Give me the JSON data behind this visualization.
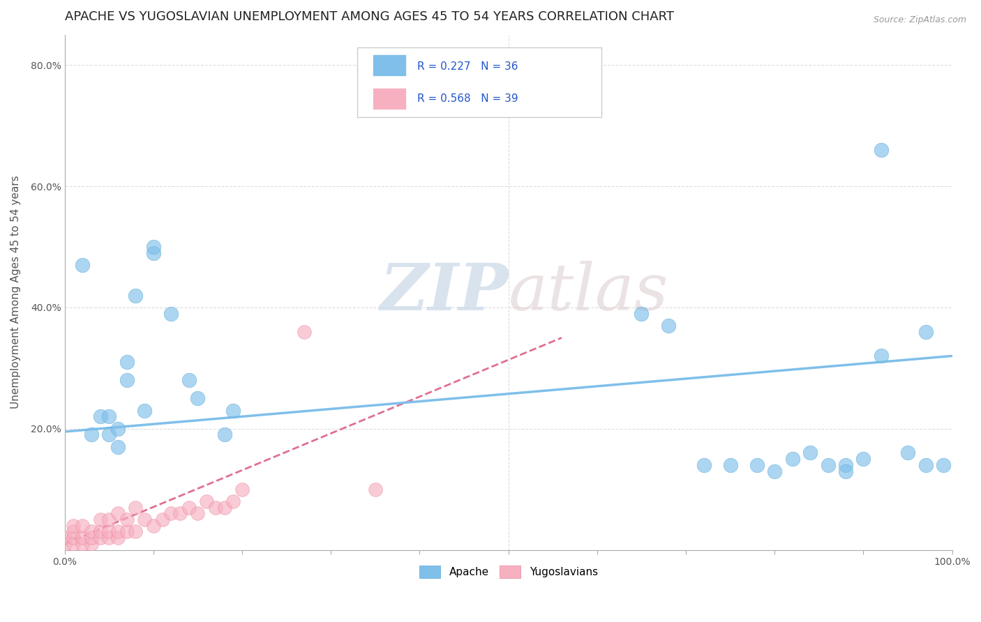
{
  "title": "APACHE VS YUGOSLAVIAN UNEMPLOYMENT AMONG AGES 45 TO 54 YEARS CORRELATION CHART",
  "source_text": "Source: ZipAtlas.com",
  "ylabel": "Unemployment Among Ages 45 to 54 years",
  "xlim": [
    0.0,
    1.0
  ],
  "ylim": [
    0.0,
    0.85
  ],
  "xticks": [
    0.0,
    0.1,
    0.2,
    0.3,
    0.4,
    0.5,
    0.6,
    0.7,
    0.8,
    0.9,
    1.0
  ],
  "xticklabels": [
    "0.0%",
    "",
    "",
    "",
    "",
    "",
    "",
    "",
    "",
    "",
    "100.0%"
  ],
  "yticks": [
    0.0,
    0.2,
    0.4,
    0.6,
    0.8
  ],
  "yticklabels": [
    "",
    "20.0%",
    "40.0%",
    "60.0%",
    "80.0%"
  ],
  "apache_color": "#7fbfea",
  "apache_edge_color": "#5aaad8",
  "yugoslavian_color": "#f7b0c0",
  "yugoslavian_edge_color": "#e8809a",
  "apache_R": 0.227,
  "apache_N": 36,
  "yugoslavian_R": 0.568,
  "yugoslavian_N": 39,
  "watermark_zip": "ZIP",
  "watermark_atlas": "atlas",
  "background_color": "#ffffff",
  "grid_color": "#dddddd",
  "apache_scatter_x": [
    0.02,
    0.03,
    0.04,
    0.05,
    0.05,
    0.06,
    0.06,
    0.07,
    0.07,
    0.08,
    0.09,
    0.1,
    0.1,
    0.12,
    0.14,
    0.15,
    0.18,
    0.19,
    0.65,
    0.68,
    0.72,
    0.75,
    0.78,
    0.8,
    0.82,
    0.84,
    0.86,
    0.88,
    0.88,
    0.9,
    0.92,
    0.92,
    0.95,
    0.97,
    0.97,
    0.99
  ],
  "apache_scatter_y": [
    0.47,
    0.19,
    0.22,
    0.19,
    0.22,
    0.17,
    0.2,
    0.28,
    0.31,
    0.42,
    0.23,
    0.49,
    0.5,
    0.39,
    0.28,
    0.25,
    0.19,
    0.23,
    0.39,
    0.37,
    0.14,
    0.14,
    0.14,
    0.13,
    0.15,
    0.16,
    0.14,
    0.14,
    0.13,
    0.15,
    0.32,
    0.66,
    0.16,
    0.36,
    0.14,
    0.14
  ],
  "yugo_scatter_x": [
    0.0,
    0.0,
    0.01,
    0.01,
    0.01,
    0.01,
    0.02,
    0.02,
    0.02,
    0.03,
    0.03,
    0.03,
    0.04,
    0.04,
    0.04,
    0.05,
    0.05,
    0.05,
    0.06,
    0.06,
    0.06,
    0.07,
    0.07,
    0.08,
    0.08,
    0.09,
    0.1,
    0.11,
    0.12,
    0.13,
    0.14,
    0.15,
    0.16,
    0.17,
    0.18,
    0.19,
    0.2,
    0.27,
    0.35
  ],
  "yugo_scatter_y": [
    0.01,
    0.02,
    0.01,
    0.02,
    0.03,
    0.04,
    0.01,
    0.02,
    0.04,
    0.01,
    0.02,
    0.03,
    0.02,
    0.03,
    0.05,
    0.02,
    0.03,
    0.05,
    0.02,
    0.03,
    0.06,
    0.03,
    0.05,
    0.03,
    0.07,
    0.05,
    0.04,
    0.05,
    0.06,
    0.06,
    0.07,
    0.06,
    0.08,
    0.07,
    0.07,
    0.08,
    0.1,
    0.36,
    0.1
  ],
  "apache_trend_x": [
    0.0,
    1.0
  ],
  "apache_trend_y": [
    0.195,
    0.32
  ],
  "yugo_trend_x": [
    0.0,
    0.56
  ],
  "yugo_trend_y": [
    0.01,
    0.35
  ],
  "legend_apache_label": "Apache",
  "legend_yugo_label": "Yugoslavians",
  "title_fontsize": 13,
  "axis_label_fontsize": 11,
  "tick_fontsize": 10,
  "legend_fontsize": 11,
  "stat_color": "#2255cc"
}
